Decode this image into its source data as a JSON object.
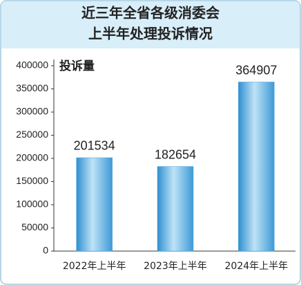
{
  "chart_data": {
    "type": "bar",
    "title": [
      "近三年全省各级消委会",
      "上半年处理投诉情况"
    ],
    "y_label": "投诉量",
    "categories": [
      "2022年上半年",
      "2023年上半年",
      "2024年上半年"
    ],
    "values": [
      201534,
      182654,
      364907
    ],
    "color": "#4aa3dc",
    "ylim": [
      0,
      400000
    ],
    "yticks": [
      0,
      50000,
      100000,
      150000,
      200000,
      250000,
      300000,
      350000,
      400000
    ],
    "grid": false
  }
}
